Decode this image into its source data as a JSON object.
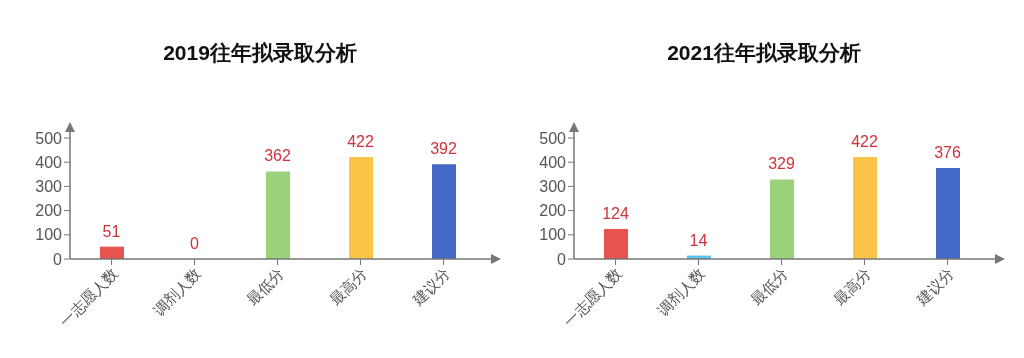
{
  "chart_data": [
    {
      "type": "bar",
      "title": "2019往年拟录取分析",
      "categories": [
        "一志愿人数",
        "调剂人数",
        "最低分",
        "最高分",
        "建议分"
      ],
      "values": [
        51,
        0,
        362,
        422,
        392
      ],
      "colors": [
        "#e8534f",
        "#5bc0eb",
        "#9bd17a",
        "#fbc54a",
        "#4468c6"
      ],
      "ylim": [
        0,
        500
      ],
      "yticks": [
        0,
        100,
        200,
        300,
        400,
        500
      ],
      "data_labels": true
    },
    {
      "type": "bar",
      "title": "2021往年拟录取分析",
      "categories": [
        "一志愿人数",
        "调剂人数",
        "最低分",
        "最高分",
        "建议分"
      ],
      "values": [
        124,
        14,
        329,
        422,
        376
      ],
      "colors": [
        "#e8534f",
        "#5bc0eb",
        "#9bd17a",
        "#fbc54a",
        "#4468c6"
      ],
      "ylim": [
        0,
        500
      ],
      "yticks": [
        0,
        100,
        200,
        300,
        400,
        500
      ],
      "data_labels": true
    }
  ]
}
